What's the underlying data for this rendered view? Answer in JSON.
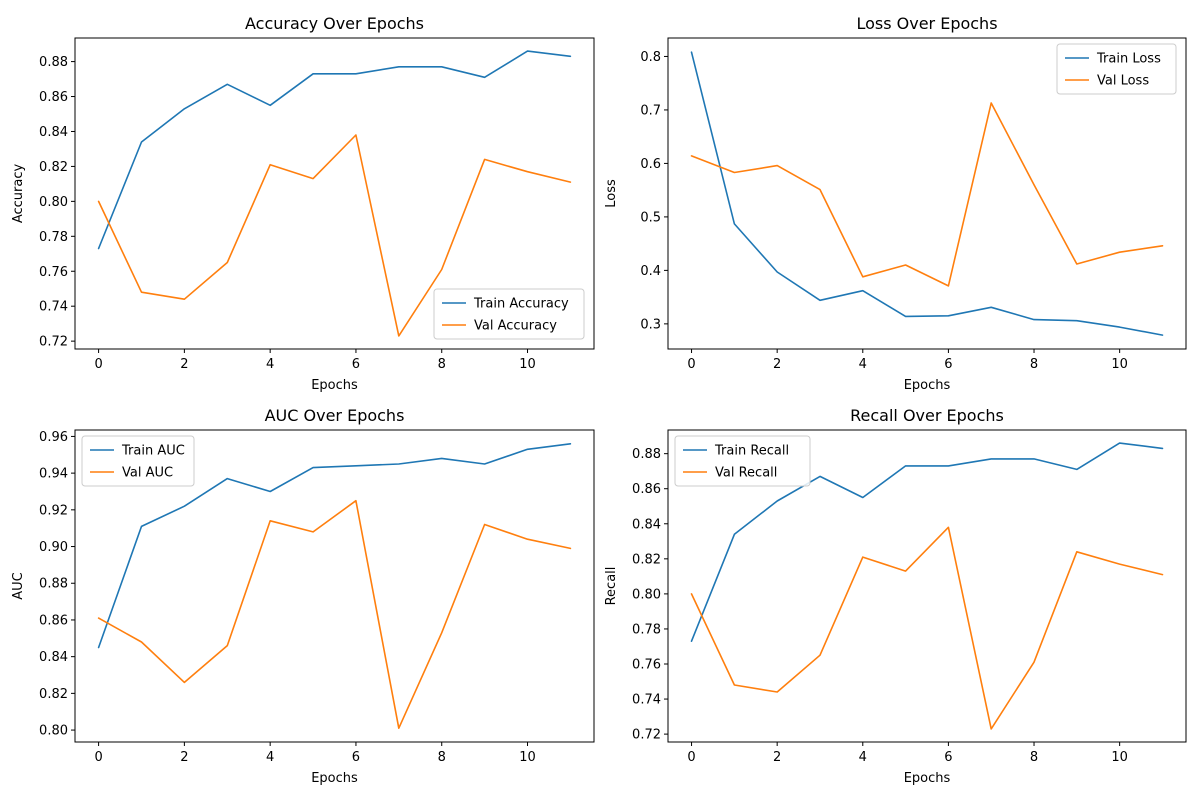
{
  "colors": {
    "train": "#1f77b4",
    "val": "#ff7f0e"
  },
  "chart_data": [
    {
      "type": "line",
      "title": "Accuracy Over Epochs",
      "xlabel": "Epochs",
      "ylabel": "Accuracy",
      "xlim": [
        -0.55,
        11.55
      ],
      "ylim": [
        0.7155,
        0.8935
      ],
      "xticks": [
        0,
        2,
        4,
        6,
        8,
        10
      ],
      "yticks": [
        0.72,
        0.74,
        0.76,
        0.78,
        0.8,
        0.82,
        0.84,
        0.86,
        0.88
      ],
      "ytick_labels": [
        "0.72",
        "0.74",
        "0.76",
        "0.78",
        "0.80",
        "0.82",
        "0.84",
        "0.86",
        "0.88"
      ],
      "legend": "lower-right",
      "grid": false,
      "x": [
        0,
        1,
        2,
        3,
        4,
        5,
        6,
        7,
        8,
        9,
        10,
        11
      ],
      "series": [
        {
          "name": "Train Accuracy",
          "color": "#1f77b4",
          "values": [
            0.773,
            0.834,
            0.853,
            0.867,
            0.855,
            0.873,
            0.873,
            0.877,
            0.877,
            0.871,
            0.886,
            0.883
          ]
        },
        {
          "name": "Val Accuracy",
          "color": "#ff7f0e",
          "values": [
            0.8,
            0.748,
            0.744,
            0.765,
            0.821,
            0.813,
            0.838,
            0.723,
            0.761,
            0.824,
            0.817,
            0.811
          ]
        }
      ]
    },
    {
      "type": "line",
      "title": "Loss Over Epochs",
      "xlabel": "Epochs",
      "ylabel": "Loss",
      "xlim": [
        -0.55,
        11.55
      ],
      "ylim": [
        0.253,
        0.8345
      ],
      "xticks": [
        0,
        2,
        4,
        6,
        8,
        10
      ],
      "yticks": [
        0.3,
        0.4,
        0.5,
        0.6,
        0.7,
        0.8
      ],
      "ytick_labels": [
        "0.3",
        "0.4",
        "0.5",
        "0.6",
        "0.7",
        "0.8"
      ],
      "legend": "upper-right",
      "grid": false,
      "x": [
        0,
        1,
        2,
        3,
        4,
        5,
        6,
        7,
        8,
        9,
        10,
        11
      ],
      "series": [
        {
          "name": "Train Loss",
          "color": "#1f77b4",
          "values": [
            0.808,
            0.487,
            0.397,
            0.344,
            0.362,
            0.314,
            0.315,
            0.331,
            0.308,
            0.306,
            0.294,
            0.279
          ]
        },
        {
          "name": "Val Loss",
          "color": "#ff7f0e",
          "values": [
            0.614,
            0.583,
            0.596,
            0.551,
            0.388,
            0.41,
            0.371,
            0.713,
            0.56,
            0.412,
            0.434,
            0.446
          ]
        }
      ]
    },
    {
      "type": "line",
      "title": "AUC Over Epochs",
      "xlabel": "Epochs",
      "ylabel": "AUC",
      "xlim": [
        -0.55,
        11.55
      ],
      "ylim": [
        0.7935,
        0.9635
      ],
      "xticks": [
        0,
        2,
        4,
        6,
        8,
        10
      ],
      "yticks": [
        0.8,
        0.82,
        0.84,
        0.86,
        0.88,
        0.9,
        0.92,
        0.94,
        0.96
      ],
      "ytick_labels": [
        "0.80",
        "0.82",
        "0.84",
        "0.86",
        "0.88",
        "0.90",
        "0.92",
        "0.94",
        "0.96"
      ],
      "legend": "upper-left",
      "grid": false,
      "x": [
        0,
        1,
        2,
        3,
        4,
        5,
        6,
        7,
        8,
        9,
        10,
        11
      ],
      "series": [
        {
          "name": "Train AUC",
          "color": "#1f77b4",
          "values": [
            0.845,
            0.911,
            0.922,
            0.937,
            0.93,
            0.943,
            0.944,
            0.945,
            0.948,
            0.945,
            0.953,
            0.956
          ]
        },
        {
          "name": "Val AUC",
          "color": "#ff7f0e",
          "values": [
            0.861,
            0.848,
            0.826,
            0.846,
            0.914,
            0.908,
            0.925,
            0.801,
            0.853,
            0.912,
            0.904,
            0.899
          ]
        }
      ]
    },
    {
      "type": "line",
      "title": "Recall Over Epochs",
      "xlabel": "Epochs",
      "ylabel": "Recall",
      "xlim": [
        -0.55,
        11.55
      ],
      "ylim": [
        0.7155,
        0.8935
      ],
      "xticks": [
        0,
        2,
        4,
        6,
        8,
        10
      ],
      "yticks": [
        0.72,
        0.74,
        0.76,
        0.78,
        0.8,
        0.82,
        0.84,
        0.86,
        0.88
      ],
      "ytick_labels": [
        "0.72",
        "0.74",
        "0.76",
        "0.78",
        "0.80",
        "0.82",
        "0.84",
        "0.86",
        "0.88"
      ],
      "legend": "upper-left",
      "grid": false,
      "x": [
        0,
        1,
        2,
        3,
        4,
        5,
        6,
        7,
        8,
        9,
        10,
        11
      ],
      "series": [
        {
          "name": "Train Recall",
          "color": "#1f77b4",
          "values": [
            0.773,
            0.834,
            0.853,
            0.867,
            0.855,
            0.873,
            0.873,
            0.877,
            0.877,
            0.871,
            0.886,
            0.883
          ]
        },
        {
          "name": "Val Recall",
          "color": "#ff7f0e",
          "values": [
            0.8,
            0.748,
            0.744,
            0.765,
            0.821,
            0.813,
            0.838,
            0.723,
            0.761,
            0.824,
            0.817,
            0.811
          ]
        }
      ]
    }
  ]
}
